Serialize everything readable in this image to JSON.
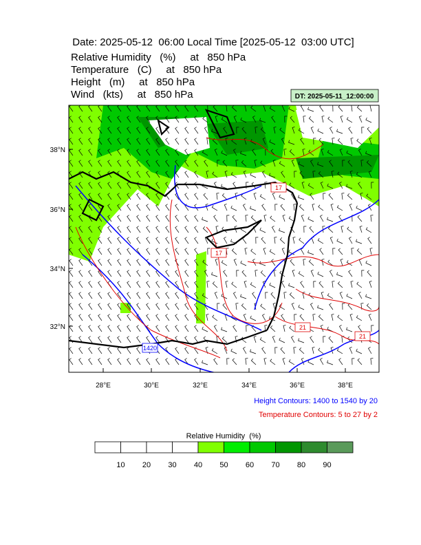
{
  "header": {
    "title": "Date: 2025-05-12  06:00 Local Time [2025-05-12  03:00 UTC]",
    "lines": [
      "Relative Humidity   (%)     at   850 hPa",
      "Temperature   (C)     at   850 hPa",
      "Height   (m)     at   850 hPa",
      "Wind   (kts)     at   850 hPa"
    ]
  },
  "dt_label": "DT: 2025-05-11_12:00:00",
  "map": {
    "lat_labels": [
      "38°N",
      "36°N",
      "34°N",
      "32°N"
    ],
    "lon_labels": [
      "28°E",
      "30°E",
      "32°E",
      "34°E",
      "36°E",
      "38°E"
    ],
    "contour_labels": [
      "17",
      "17",
      "21",
      "21",
      "1420"
    ]
  },
  "notes": {
    "height": "Height Contours: 1400 to 1540 by 20",
    "temperature": "Temperature Contours: 5 to 27 by 2"
  },
  "colorbar": {
    "title": "Relative Humidity  (%)",
    "ticks": [
      10,
      20,
      30,
      40,
      50,
      60,
      70,
      80,
      90
    ],
    "colors": [
      "#ffffff",
      "#ffffff",
      "#ffffff",
      "#ffffff",
      "#80ff00",
      "#00ee00",
      "#00c800",
      "#009600",
      "#2e8b2e",
      "#5a9a5a"
    ]
  }
}
